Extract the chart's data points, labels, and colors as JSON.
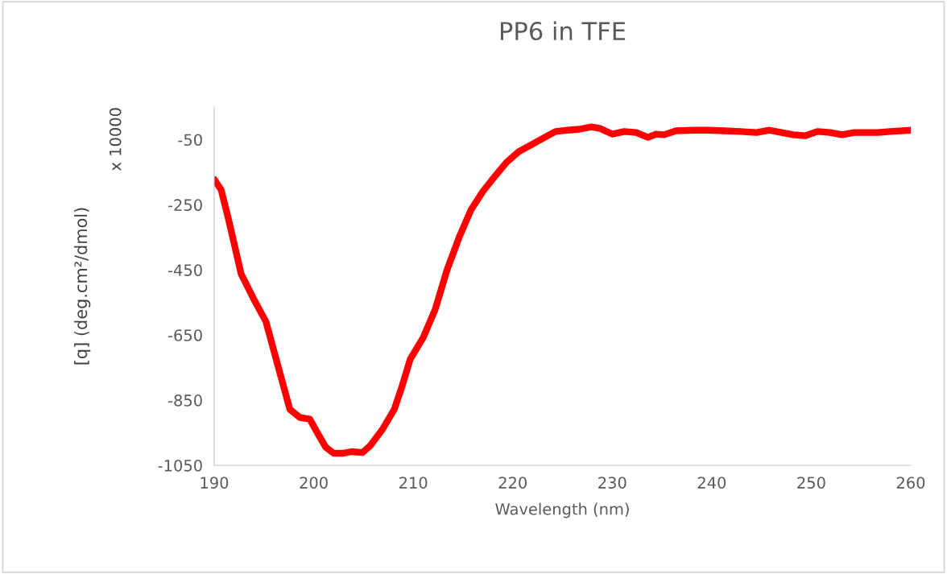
{
  "chart_data": {
    "type": "line",
    "title": "PP6 in TFE",
    "xlabel": "Wavelength (nm)",
    "ylabel": "[q] (deg.cm²/dmol)",
    "annotations": [
      "x 10000"
    ],
    "xlim": [
      190,
      260
    ],
    "xticks": [
      190,
      200,
      210,
      220,
      230,
      240,
      250,
      260
    ],
    "ylim": [
      -1050,
      50
    ],
    "yticks": [
      -1050,
      -850,
      -650,
      -450,
      -250,
      -50
    ],
    "grid": false,
    "marker": "none",
    "line_style": "solid",
    "series": [
      {
        "color": "#ff0000",
        "x": [
          190,
          190.7,
          191.5,
          192.7,
          193.9,
          195.2,
          196.4,
          197.6,
          198.6,
          199.6,
          200.4,
          201.2,
          202.0,
          202.9,
          203.8,
          204.9,
          205.7,
          206.9,
          208.1,
          208.9,
          209.7,
          211.0,
          212.2,
          213.4,
          214.6,
          215.8,
          217.0,
          218.2,
          219.4,
          220.6,
          221.9,
          223.1,
          224.3,
          225.5,
          226.7,
          227.9,
          228.8,
          230.0,
          231.2,
          232.4,
          233.6,
          234.4,
          235.2,
          236.4,
          238.1,
          239.7,
          241.3,
          242.9,
          244.5,
          245.8,
          247.0,
          248.2,
          249.4,
          250.6,
          251.9,
          253.1,
          254.3,
          255.5,
          256.7,
          257.9,
          260
        ],
        "values": [
          -172,
          -204,
          -302,
          -462,
          -535,
          -609,
          -744,
          -878,
          -903,
          -908,
          -952,
          -994,
          -1013,
          -1013,
          -1008,
          -1011,
          -989,
          -940,
          -878,
          -805,
          -724,
          -658,
          -572,
          -450,
          -351,
          -266,
          -209,
          -163,
          -119,
          -87,
          -65,
          -45,
          -25,
          -21,
          -18,
          -11,
          -16,
          -33,
          -25,
          -28,
          -43,
          -33,
          -35,
          -23,
          -21,
          -21,
          -23,
          -25,
          -28,
          -21,
          -28,
          -35,
          -38,
          -25,
          -28,
          -35,
          -28,
          -28,
          -28,
          -25,
          -21
        ]
      }
    ]
  }
}
